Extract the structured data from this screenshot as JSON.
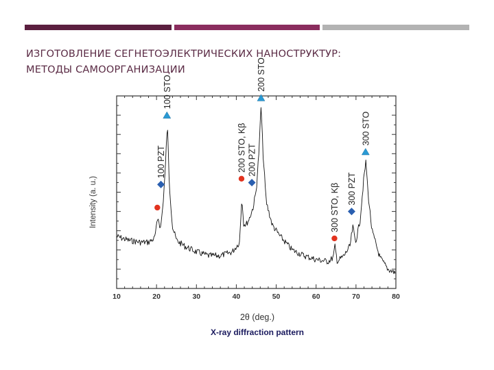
{
  "colors": {
    "bar1": "#5b1f3f",
    "bar2": "#8a2d5e",
    "bar3": "#b3b3b3",
    "title": "#5a2a44",
    "trace": "#111111",
    "sto_marker": "#2a9ad4",
    "pzt_marker": "#2a5fb0",
    "kbeta_marker": "#e2331f"
  },
  "slide": {
    "title_line1": "ИЗГОТОВЛЕНИЕ СЕГНЕТОЭЛЕКТРИЧЕСКИХ НАНОСТРУКТУР:",
    "title_line2": "МЕТОДЫ САМООРГАНИЗАЦИИ"
  },
  "chart_data": {
    "type": "line",
    "title": "X-ray diffraction pattern",
    "xlabel": "2θ  (deg.)",
    "ylabel": "Intensity (a. u.)",
    "xlim": [
      10,
      80
    ],
    "xticks": [
      10,
      20,
      30,
      40,
      50,
      60,
      70,
      80
    ],
    "ylim": [
      0,
      1
    ],
    "grid": false,
    "legend": "none",
    "series": [
      {
        "x": [
          10,
          13,
          16,
          18,
          19.5,
          20.4,
          21,
          21.6,
          22.2,
          22.7,
          23.2,
          24,
          25,
          27,
          30,
          33,
          36,
          39,
          40.8,
          41.4,
          41.8,
          42.4,
          43.2,
          44.2,
          45,
          45.7,
          46.2,
          46.7,
          47.5,
          49,
          51,
          54,
          57,
          60,
          63,
          64.3,
          64.7,
          65.3,
          67,
          68.5,
          69.2,
          69.9,
          71,
          72,
          72.5,
          73,
          74,
          76,
          78,
          80
        ],
        "y": [
          0.27,
          0.25,
          0.24,
          0.24,
          0.26,
          0.37,
          0.31,
          0.43,
          0.62,
          0.86,
          0.55,
          0.32,
          0.25,
          0.22,
          0.19,
          0.17,
          0.17,
          0.19,
          0.24,
          0.48,
          0.34,
          0.33,
          0.36,
          0.42,
          0.51,
          0.72,
          0.95,
          0.7,
          0.45,
          0.33,
          0.27,
          0.2,
          0.17,
          0.15,
          0.14,
          0.16,
          0.22,
          0.14,
          0.17,
          0.22,
          0.32,
          0.24,
          0.35,
          0.58,
          0.66,
          0.5,
          0.3,
          0.16,
          0.1,
          0.08
        ]
      }
    ],
    "annotations": [
      {
        "label": "",
        "marker": "circle",
        "x": 20.2,
        "y": 0.42
      },
      {
        "label": "100 PZT",
        "marker": "diamond",
        "x": 21.1,
        "y": 0.54
      },
      {
        "label": "100 STO",
        "marker": "triangle",
        "x": 22.6,
        "y": 0.9
      },
      {
        "label": "200 STO, Kβ",
        "marker": "circle",
        "x": 41.3,
        "y": 0.57
      },
      {
        "label": "200 PZT",
        "marker": "diamond",
        "x": 43.9,
        "y": 0.55
      },
      {
        "label": "200 STO",
        "marker": "triangle",
        "x": 46.2,
        "y": 0.99
      },
      {
        "label": "300 STO, Kβ",
        "marker": "circle",
        "x": 64.6,
        "y": 0.26
      },
      {
        "label": "300 PZT",
        "marker": "diamond",
        "x": 68.9,
        "y": 0.4
      },
      {
        "label": "300 STO",
        "marker": "triangle",
        "x": 72.4,
        "y": 0.71
      }
    ]
  }
}
